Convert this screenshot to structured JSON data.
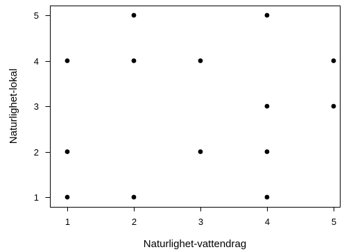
{
  "chart_data": {
    "type": "scatter",
    "xlabel": "Naturlighet-vattendrag",
    "ylabel": "Naturlighet-lokal",
    "xlim": [
      1,
      5
    ],
    "ylim": [
      1,
      5
    ],
    "x_ticks": [
      "1",
      "2",
      "3",
      "4",
      "5"
    ],
    "y_ticks": [
      "1",
      "2",
      "3",
      "4",
      "5"
    ],
    "grid": false,
    "legend": "none",
    "point_color": "#000000",
    "points": [
      {
        "x": 1,
        "y": 1
      },
      {
        "x": 1,
        "y": 2
      },
      {
        "x": 1,
        "y": 4
      },
      {
        "x": 2,
        "y": 1
      },
      {
        "x": 2,
        "y": 4
      },
      {
        "x": 2,
        "y": 5
      },
      {
        "x": 3,
        "y": 2
      },
      {
        "x": 3,
        "y": 4
      },
      {
        "x": 4,
        "y": 1
      },
      {
        "x": 4,
        "y": 2
      },
      {
        "x": 4,
        "y": 3
      },
      {
        "x": 4,
        "y": 5
      },
      {
        "x": 5,
        "y": 3
      },
      {
        "x": 5,
        "y": 4
      }
    ]
  }
}
